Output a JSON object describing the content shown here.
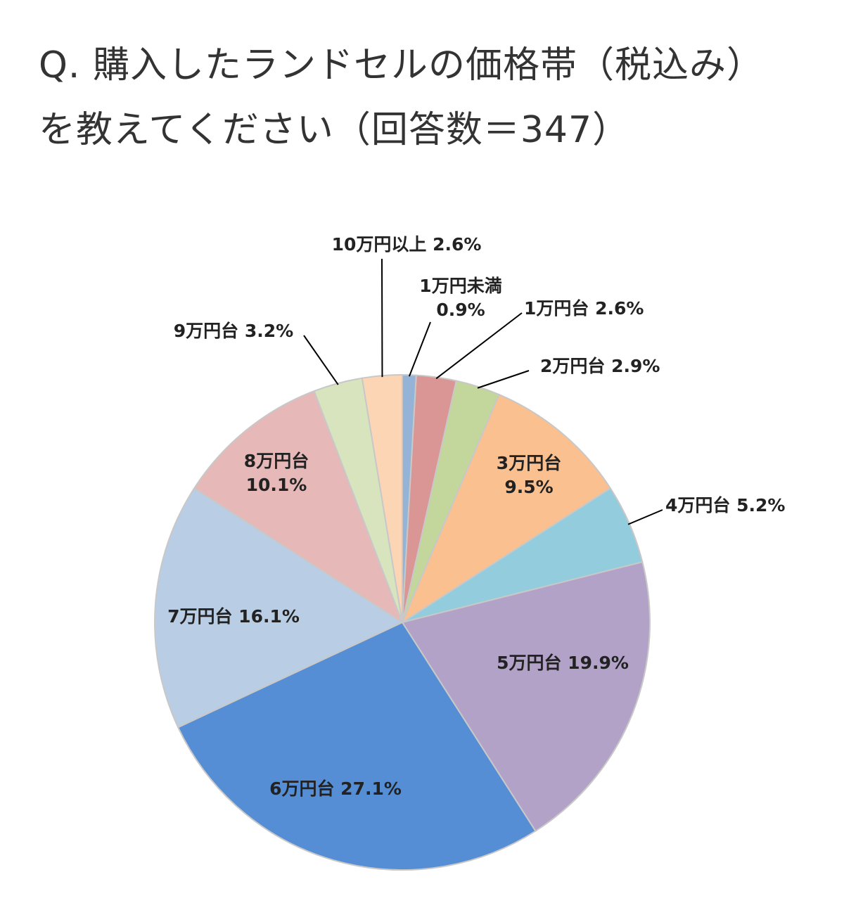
{
  "title": {
    "line1": "Q.  購入したランドセルの価格帯（税込み）",
    "line2": "を教えてください（回答数＝347）"
  },
  "chart_data": {
    "type": "pie",
    "start": "12 o'clock, clockwise",
    "slices": [
      {
        "label": "1万円未満",
        "value": 0.9,
        "value_text": "0.9%",
        "color": "#95B3D7"
      },
      {
        "label": "1万円台",
        "value": 2.6,
        "value_text": "2.6%",
        "color": "#D99694"
      },
      {
        "label": "2万円台",
        "value": 2.9,
        "value_text": "2.9%",
        "color": "#C3D69B"
      },
      {
        "label": "3万円台",
        "value": 9.5,
        "value_text": "9.5%",
        "color": "#FAC090"
      },
      {
        "label": "4万円台",
        "value": 5.2,
        "value_text": "5.2%",
        "color": "#93CDDD"
      },
      {
        "label": "5万円台",
        "value": 19.9,
        "value_text": "19.9%",
        "color": "#B2A2C7"
      },
      {
        "label": "6万円台",
        "value": 27.1,
        "value_text": "27.1%",
        "color": "#558ED5"
      },
      {
        "label": "7万円台",
        "value": 16.1,
        "value_text": "16.1%",
        "color": "#B9CDE5"
      },
      {
        "label": "8万円台",
        "value": 10.1,
        "value_text": "10.1%",
        "color": "#E6B9B8"
      },
      {
        "label": "9万円台",
        "value": 3.2,
        "value_text": "3.2%",
        "color": "#D7E4BD"
      },
      {
        "label": "10万円以上",
        "value": 2.6,
        "value_text": "2.6%",
        "color": "#FCD5B5"
      }
    ]
  }
}
